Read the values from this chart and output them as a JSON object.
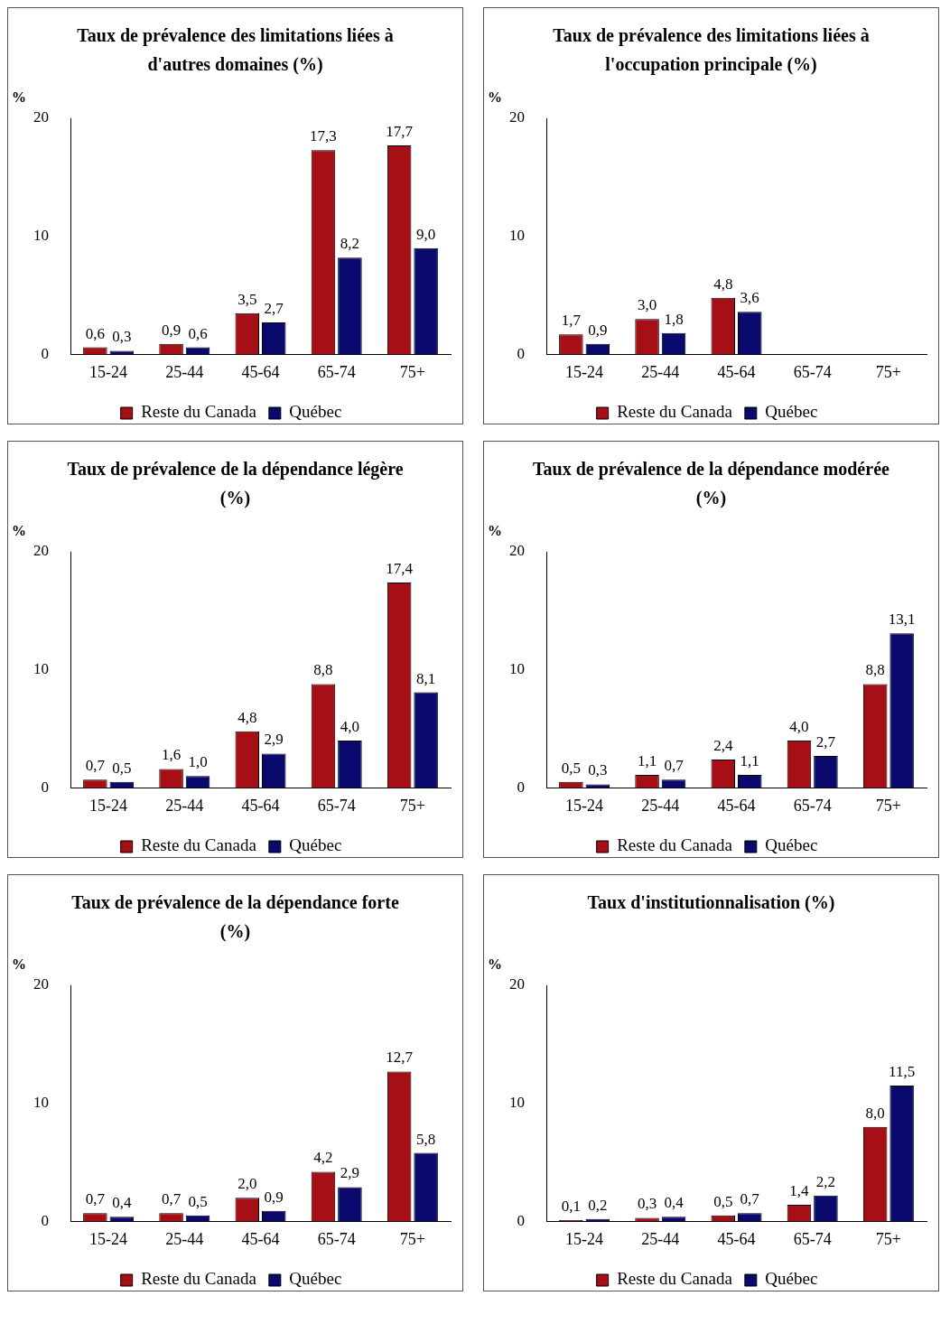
{
  "chart_data": [
    {
      "type": "bar",
      "title": "Taux de prévalence des limitations liées à d'autres domaines (%)",
      "ylabel": "%",
      "categories": [
        "15-24",
        "25-44",
        "45-64",
        "65-74",
        "75+"
      ],
      "ylim": [
        0,
        20
      ],
      "yticks": [
        0,
        10,
        20
      ],
      "grid": false,
      "legend": "bottom",
      "series": [
        {
          "name": "Reste du Canada",
          "color": "#a50f15",
          "values": [
            0.6,
            0.9,
            3.5,
            17.3,
            17.7
          ],
          "value_labels": [
            "0,6",
            "0,9",
            "3,5",
            "17,3",
            "17,7"
          ]
        },
        {
          "name": "Québec",
          "color": "#0a0a6e",
          "values": [
            0.3,
            0.6,
            2.7,
            8.2,
            9.0
          ],
          "value_labels": [
            "0,3",
            "0,6",
            "2,7",
            "8,2",
            "9,0"
          ]
        }
      ]
    },
    {
      "type": "bar",
      "title": "Taux de prévalence des limitations liées à l'occupation principale (%)",
      "ylabel": "%",
      "categories": [
        "15-24",
        "25-44",
        "45-64",
        "65-74",
        "75+"
      ],
      "ylim": [
        0,
        20
      ],
      "yticks": [
        0,
        10,
        20
      ],
      "grid": false,
      "legend": "bottom",
      "series": [
        {
          "name": "Reste du Canada",
          "color": "#a50f15",
          "values": [
            1.7,
            3.0,
            4.8,
            null,
            null
          ],
          "value_labels": [
            "1,7",
            "3,0",
            "4,8",
            null,
            null
          ]
        },
        {
          "name": "Québec",
          "color": "#0a0a6e",
          "values": [
            0.9,
            1.8,
            3.6,
            null,
            null
          ],
          "value_labels": [
            "0,9",
            "1,8",
            "3,6",
            null,
            null
          ]
        }
      ]
    },
    {
      "type": "bar",
      "title": "Taux de prévalence de la dépendance légère (%)",
      "ylabel": "%",
      "categories": [
        "15-24",
        "25-44",
        "45-64",
        "65-74",
        "75+"
      ],
      "ylim": [
        0,
        20
      ],
      "yticks": [
        0,
        10,
        20
      ],
      "grid": false,
      "legend": "bottom",
      "series": [
        {
          "name": "Reste du Canada",
          "color": "#a50f15",
          "values": [
            0.7,
            1.6,
            4.8,
            8.8,
            17.4
          ],
          "value_labels": [
            "0,7",
            "1,6",
            "4,8",
            "8,8",
            "17,4"
          ]
        },
        {
          "name": "Québec",
          "color": "#0a0a6e",
          "values": [
            0.5,
            1.0,
            2.9,
            4.0,
            8.1
          ],
          "value_labels": [
            "0,5",
            "1,0",
            "2,9",
            "4,0",
            "8,1"
          ]
        }
      ]
    },
    {
      "type": "bar",
      "title": "Taux de prévalence de la dépendance modérée (%)",
      "ylabel": "%",
      "categories": [
        "15-24",
        "25-44",
        "45-64",
        "65-74",
        "75+"
      ],
      "ylim": [
        0,
        20
      ],
      "yticks": [
        0,
        10,
        20
      ],
      "grid": false,
      "legend": "bottom",
      "series": [
        {
          "name": "Reste du Canada",
          "color": "#a50f15",
          "values": [
            0.5,
            1.1,
            2.4,
            4.0,
            8.8
          ],
          "value_labels": [
            "0,5",
            "1,1",
            "2,4",
            "4,0",
            "8,8"
          ]
        },
        {
          "name": "Québec",
          "color": "#0a0a6e",
          "values": [
            0.3,
            0.7,
            1.1,
            2.7,
            13.1
          ],
          "value_labels": [
            "0,3",
            "0,7",
            "1,1",
            "2,7",
            "13,1"
          ]
        }
      ]
    },
    {
      "type": "bar",
      "title": "Taux de prévalence de la dépendance forte (%)",
      "ylabel": "%",
      "categories": [
        "15-24",
        "25-44",
        "45-64",
        "65-74",
        "75+"
      ],
      "ylim": [
        0,
        20
      ],
      "yticks": [
        0,
        10,
        20
      ],
      "grid": false,
      "legend": "bottom",
      "series": [
        {
          "name": "Reste du Canada",
          "color": "#a50f15",
          "values": [
            0.7,
            0.7,
            2.0,
            4.2,
            12.7
          ],
          "value_labels": [
            "0,7",
            "0,7",
            "2,0",
            "4,2",
            "12,7"
          ]
        },
        {
          "name": "Québec",
          "color": "#0a0a6e",
          "values": [
            0.4,
            0.5,
            0.9,
            2.9,
            5.8
          ],
          "value_labels": [
            "0,4",
            "0,5",
            "0,9",
            "2,9",
            "5,8"
          ]
        }
      ]
    },
    {
      "type": "bar",
      "title": "Taux d'institutionnalisation (%)",
      "ylabel": "%",
      "categories": [
        "15-24",
        "25-44",
        "45-64",
        "65-74",
        "75+"
      ],
      "ylim": [
        0,
        20
      ],
      "yticks": [
        0,
        10,
        20
      ],
      "grid": false,
      "legend": "bottom",
      "series": [
        {
          "name": "Reste du Canada",
          "color": "#a50f15",
          "values": [
            0.1,
            0.3,
            0.5,
            1.4,
            8.0
          ],
          "value_labels": [
            "0,1",
            "0,3",
            "0,5",
            "1,4",
            "8,0"
          ]
        },
        {
          "name": "Québec",
          "color": "#0a0a6e",
          "values": [
            0.2,
            0.4,
            0.7,
            2.2,
            11.5
          ],
          "value_labels": [
            "0,2",
            "0,4",
            "0,7",
            "2,2",
            "11,5"
          ]
        }
      ]
    }
  ]
}
